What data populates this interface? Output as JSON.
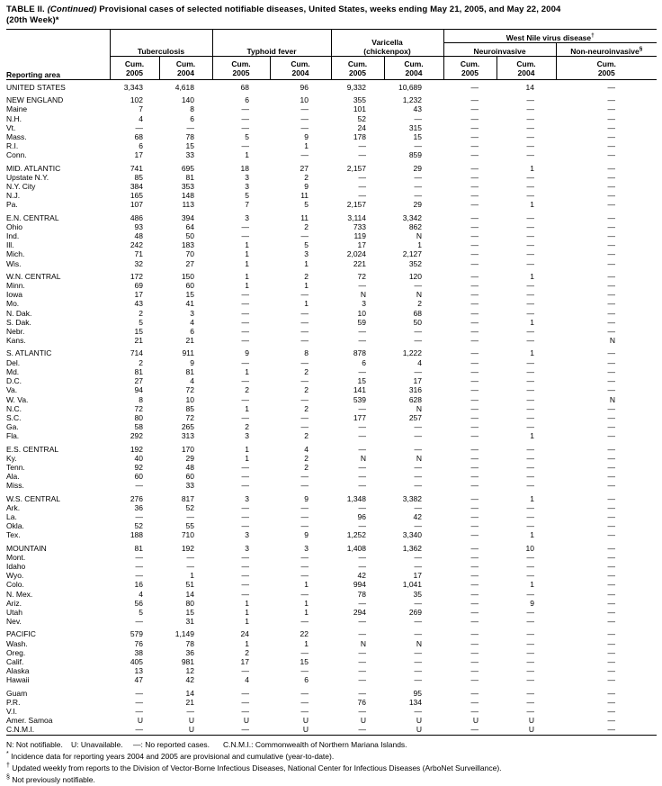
{
  "title": {
    "prefix": "TABLE II.",
    "continued": "(Continued)",
    "rest": "Provisional cases of selected notifiable diseases, United States, weeks ending May 21, 2005, and May 22, 2004",
    "line2": "(20th Week)*"
  },
  "header": {
    "reporting_area": "Reporting area",
    "cum": "Cum.",
    "groups": {
      "tuberculosis": "Tuberculosis",
      "typhoid": "Typhoid fever",
      "varicella_line1": "Varicella",
      "varicella_line2": "(chickenpox)",
      "wnv": "West Nile virus disease",
      "wnv_marker": "†",
      "neuro": "Neuroinvasive",
      "nonneuro": "Non-neuroinvasive",
      "nonneuro_marker": "§"
    },
    "col_years": [
      "2005",
      "2004",
      "2005",
      "2004",
      "2005",
      "2004",
      "2005",
      "2004",
      "2005"
    ]
  },
  "table": {
    "sections": [
      [
        [
          "UNITED STATES",
          "3,343",
          "4,618",
          "68",
          "96",
          "9,332",
          "10,689",
          "—",
          "14",
          "—"
        ]
      ],
      [
        [
          "NEW ENGLAND",
          "102",
          "140",
          "6",
          "10",
          "355",
          "1,232",
          "—",
          "—",
          "—"
        ],
        [
          "Maine",
          "7",
          "8",
          "—",
          "—",
          "101",
          "43",
          "—",
          "—",
          "—"
        ],
        [
          "N.H.",
          "4",
          "6",
          "—",
          "—",
          "52",
          "—",
          "—",
          "—",
          "—"
        ],
        [
          "Vt.",
          "—",
          "—",
          "—",
          "—",
          "24",
          "315",
          "—",
          "—",
          "—"
        ],
        [
          "Mass.",
          "68",
          "78",
          "5",
          "9",
          "178",
          "15",
          "—",
          "—",
          "—"
        ],
        [
          "R.I.",
          "6",
          "15",
          "—",
          "1",
          "—",
          "—",
          "—",
          "—",
          "—"
        ],
        [
          "Conn.",
          "17",
          "33",
          "1",
          "—",
          "—",
          "859",
          "—",
          "—",
          "—"
        ]
      ],
      [
        [
          "MID. ATLANTIC",
          "741",
          "695",
          "18",
          "27",
          "2,157",
          "29",
          "—",
          "1",
          "—"
        ],
        [
          "Upstate N.Y.",
          "85",
          "81",
          "3",
          "2",
          "—",
          "—",
          "—",
          "—",
          "—"
        ],
        [
          "N.Y. City",
          "384",
          "353",
          "3",
          "9",
          "—",
          "—",
          "—",
          "—",
          "—"
        ],
        [
          "N.J.",
          "165",
          "148",
          "5",
          "11",
          "—",
          "—",
          "—",
          "—",
          "—"
        ],
        [
          "Pa.",
          "107",
          "113",
          "7",
          "5",
          "2,157",
          "29",
          "—",
          "1",
          "—"
        ]
      ],
      [
        [
          "E.N. CENTRAL",
          "486",
          "394",
          "3",
          "11",
          "3,114",
          "3,342",
          "—",
          "—",
          "—"
        ],
        [
          "Ohio",
          "93",
          "64",
          "—",
          "2",
          "733",
          "862",
          "—",
          "—",
          "—"
        ],
        [
          "Ind.",
          "48",
          "50",
          "—",
          "—",
          "119",
          "N",
          "—",
          "—",
          "—"
        ],
        [
          "Ill.",
          "242",
          "183",
          "1",
          "5",
          "17",
          "1",
          "—",
          "—",
          "—"
        ],
        [
          "Mich.",
          "71",
          "70",
          "1",
          "3",
          "2,024",
          "2,127",
          "—",
          "—",
          "—"
        ],
        [
          "Wis.",
          "32",
          "27",
          "1",
          "1",
          "221",
          "352",
          "—",
          "—",
          "—"
        ]
      ],
      [
        [
          "W.N. CENTRAL",
          "172",
          "150",
          "1",
          "2",
          "72",
          "120",
          "—",
          "1",
          "—"
        ],
        [
          "Minn.",
          "69",
          "60",
          "1",
          "1",
          "—",
          "—",
          "—",
          "—",
          "—"
        ],
        [
          "Iowa",
          "17",
          "15",
          "—",
          "—",
          "N",
          "N",
          "—",
          "—",
          "—"
        ],
        [
          "Mo.",
          "43",
          "41",
          "—",
          "1",
          "3",
          "2",
          "—",
          "—",
          "—"
        ],
        [
          "N. Dak.",
          "2",
          "3",
          "—",
          "—",
          "10",
          "68",
          "—",
          "—",
          "—"
        ],
        [
          "S. Dak.",
          "5",
          "4",
          "—",
          "—",
          "59",
          "50",
          "—",
          "1",
          "—"
        ],
        [
          "Nebr.",
          "15",
          "6",
          "—",
          "—",
          "—",
          "—",
          "—",
          "—",
          "—"
        ],
        [
          "Kans.",
          "21",
          "21",
          "—",
          "—",
          "—",
          "—",
          "—",
          "—",
          "N"
        ]
      ],
      [
        [
          "S. ATLANTIC",
          "714",
          "911",
          "9",
          "8",
          "878",
          "1,222",
          "—",
          "1",
          "—"
        ],
        [
          "Del.",
          "2",
          "9",
          "—",
          "—",
          "6",
          "4",
          "—",
          "—",
          "—"
        ],
        [
          "Md.",
          "81",
          "81",
          "1",
          "2",
          "—",
          "—",
          "—",
          "—",
          "—"
        ],
        [
          "D.C.",
          "27",
          "4",
          "—",
          "—",
          "15",
          "17",
          "—",
          "—",
          "—"
        ],
        [
          "Va.",
          "94",
          "72",
          "2",
          "2",
          "141",
          "316",
          "—",
          "—",
          "—"
        ],
        [
          "W. Va.",
          "8",
          "10",
          "—",
          "—",
          "539",
          "628",
          "—",
          "—",
          "N"
        ],
        [
          "N.C.",
          "72",
          "85",
          "1",
          "2",
          "—",
          "N",
          "—",
          "—",
          "—"
        ],
        [
          "S.C.",
          "80",
          "72",
          "—",
          "—",
          "177",
          "257",
          "—",
          "—",
          "—"
        ],
        [
          "Ga.",
          "58",
          "265",
          "2",
          "—",
          "—",
          "—",
          "—",
          "—",
          "—"
        ],
        [
          "Fla.",
          "292",
          "313",
          "3",
          "2",
          "—",
          "—",
          "—",
          "1",
          "—"
        ]
      ],
      [
        [
          "E.S. CENTRAL",
          "192",
          "170",
          "1",
          "4",
          "—",
          "—",
          "—",
          "—",
          "—"
        ],
        [
          "Ky.",
          "40",
          "29",
          "1",
          "2",
          "N",
          "N",
          "—",
          "—",
          "—"
        ],
        [
          "Tenn.",
          "92",
          "48",
          "—",
          "2",
          "—",
          "—",
          "—",
          "—",
          "—"
        ],
        [
          "Ala.",
          "60",
          "60",
          "—",
          "—",
          "—",
          "—",
          "—",
          "—",
          "—"
        ],
        [
          "Miss.",
          "—",
          "33",
          "—",
          "—",
          "—",
          "—",
          "—",
          "—",
          "—"
        ]
      ],
      [
        [
          "W.S. CENTRAL",
          "276",
          "817",
          "3",
          "9",
          "1,348",
          "3,382",
          "—",
          "1",
          "—"
        ],
        [
          "Ark.",
          "36",
          "52",
          "—",
          "—",
          "—",
          "—",
          "—",
          "—",
          "—"
        ],
        [
          "La.",
          "—",
          "—",
          "—",
          "—",
          "96",
          "42",
          "—",
          "—",
          "—"
        ],
        [
          "Okla.",
          "52",
          "55",
          "—",
          "—",
          "—",
          "—",
          "—",
          "—",
          "—"
        ],
        [
          "Tex.",
          "188",
          "710",
          "3",
          "9",
          "1,252",
          "3,340",
          "—",
          "1",
          "—"
        ]
      ],
      [
        [
          "MOUNTAIN",
          "81",
          "192",
          "3",
          "3",
          "1,408",
          "1,362",
          "—",
          "10",
          "—"
        ],
        [
          "Mont.",
          "—",
          "—",
          "—",
          "—",
          "—",
          "—",
          "—",
          "—",
          "—"
        ],
        [
          "Idaho",
          "—",
          "—",
          "—",
          "—",
          "—",
          "—",
          "—",
          "—",
          "—"
        ],
        [
          "Wyo.",
          "—",
          "1",
          "—",
          "—",
          "42",
          "17",
          "—",
          "—",
          "—"
        ],
        [
          "Colo.",
          "16",
          "51",
          "—",
          "1",
          "994",
          "1,041",
          "—",
          "1",
          "—"
        ],
        [
          "N. Mex.",
          "4",
          "14",
          "—",
          "—",
          "78",
          "35",
          "—",
          "—",
          "—"
        ],
        [
          "Ariz.",
          "56",
          "80",
          "1",
          "1",
          "—",
          "—",
          "—",
          "9",
          "—"
        ],
        [
          "Utah",
          "5",
          "15",
          "1",
          "1",
          "294",
          "269",
          "—",
          "—",
          "—"
        ],
        [
          "Nev.",
          "—",
          "31",
          "1",
          "—",
          "—",
          "—",
          "—",
          "—",
          "—"
        ]
      ],
      [
        [
          "PACIFIC",
          "579",
          "1,149",
          "24",
          "22",
          "—",
          "—",
          "—",
          "—",
          "—"
        ],
        [
          "Wash.",
          "76",
          "78",
          "1",
          "1",
          "N",
          "N",
          "—",
          "—",
          "—"
        ],
        [
          "Oreg.",
          "38",
          "36",
          "2",
          "—",
          "—",
          "—",
          "—",
          "—",
          "—"
        ],
        [
          "Calif.",
          "405",
          "981",
          "17",
          "15",
          "—",
          "—",
          "—",
          "—",
          "—"
        ],
        [
          "Alaska",
          "13",
          "12",
          "—",
          "—",
          "—",
          "—",
          "—",
          "—",
          "—"
        ],
        [
          "Hawaii",
          "47",
          "42",
          "4",
          "6",
          "—",
          "—",
          "—",
          "—",
          "—"
        ]
      ],
      [
        [
          "Guam",
          "—",
          "14",
          "—",
          "—",
          "—",
          "95",
          "—",
          "—",
          "—"
        ],
        [
          "P.R.",
          "—",
          "21",
          "—",
          "—",
          "76",
          "134",
          "—",
          "—",
          "—"
        ],
        [
          "V.I.",
          "—",
          "—",
          "—",
          "—",
          "—",
          "—",
          "—",
          "—",
          "—"
        ],
        [
          "Amer. Samoa",
          "U",
          "U",
          "U",
          "U",
          "U",
          "U",
          "U",
          "U",
          "—"
        ],
        [
          "C.N.M.I.",
          "—",
          "U",
          "—",
          "U",
          "—",
          "U",
          "—",
          "U",
          "—"
        ]
      ]
    ]
  },
  "footnotes": {
    "legend": [
      "N: Not notifiable.",
      "U: Unavailable.",
      "—: No reported cases.",
      "C.N.M.I.: Commonwealth of Northern Mariana Islands."
    ],
    "marked": [
      {
        "marker": "*",
        "text": "Incidence data for reporting years 2004 and 2005 are provisional and cumulative (year-to-date)."
      },
      {
        "marker": "†",
        "text": "Updated weekly from reports to the Division of Vector-Borne Infectious Diseases, National Center for Infectious Diseases (ArboNet Surveillance)."
      },
      {
        "marker": "§",
        "text": "Not previously notifiable."
      }
    ]
  }
}
